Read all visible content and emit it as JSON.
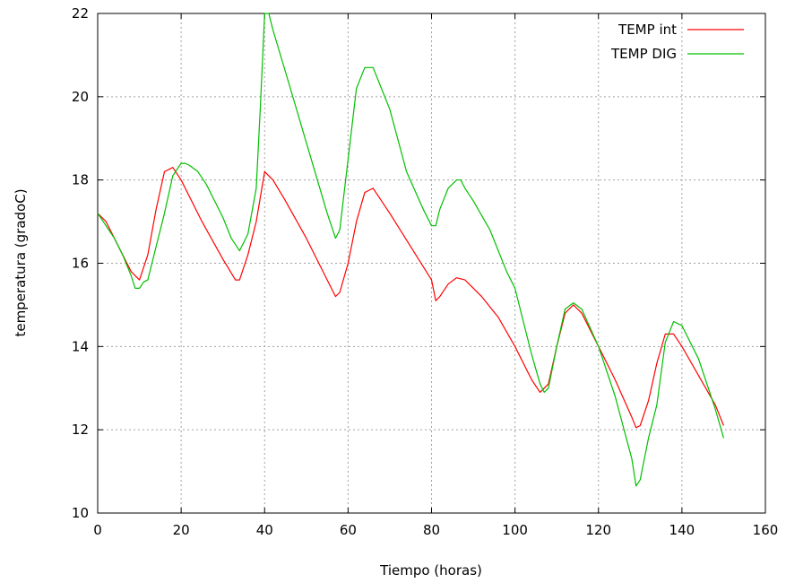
{
  "chart_data": {
    "type": "line",
    "xlabel": "Tiempo (horas)",
    "ylabel": "temperatura (gradoC)",
    "xlim": [
      0,
      160
    ],
    "ylim": [
      10,
      22
    ],
    "xticks": [
      0,
      20,
      40,
      60,
      80,
      100,
      120,
      140,
      160
    ],
    "yticks": [
      10,
      12,
      14,
      16,
      18,
      20,
      22
    ],
    "grid": true,
    "legend_position": "top-right",
    "series": [
      {
        "name": "TEMP int",
        "color": "#ff0000",
        "x": [
          0,
          2,
          4,
          6,
          8,
          10,
          12,
          14,
          16,
          18,
          20,
          25,
          30,
          33,
          34,
          36,
          38,
          40,
          42,
          45,
          50,
          55,
          57,
          58,
          60,
          62,
          64,
          66,
          70,
          75,
          80,
          81,
          82,
          84,
          86,
          88,
          92,
          96,
          100,
          104,
          106,
          108,
          110,
          112,
          114,
          116,
          120,
          124,
          128,
          129,
          130,
          132,
          134,
          136,
          138,
          140,
          144,
          148,
          150
        ],
        "y": [
          17.2,
          17.0,
          16.6,
          16.2,
          15.8,
          15.6,
          16.2,
          17.3,
          18.2,
          18.3,
          18.0,
          17.0,
          16.1,
          15.6,
          15.6,
          16.2,
          17.0,
          18.2,
          18.0,
          17.5,
          16.6,
          15.6,
          15.2,
          15.3,
          16.0,
          17.0,
          17.7,
          17.8,
          17.2,
          16.4,
          15.6,
          15.1,
          15.2,
          15.5,
          15.65,
          15.6,
          15.2,
          14.7,
          14.0,
          13.2,
          12.9,
          13.1,
          14.0,
          14.8,
          15.0,
          14.8,
          14.0,
          13.2,
          12.3,
          12.05,
          12.1,
          12.7,
          13.6,
          14.3,
          14.3,
          14.0,
          13.3,
          12.6,
          12.1
        ]
      },
      {
        "name": "TEMP DIG",
        "color": "#00c000",
        "x": [
          0,
          2,
          4,
          6,
          8,
          9,
          10,
          11,
          12,
          14,
          16,
          18,
          20,
          21,
          22,
          24,
          26,
          28,
          30,
          32,
          34,
          36,
          38,
          39,
          40,
          41,
          42,
          45,
          50,
          55,
          57,
          58,
          60,
          62,
          64,
          66,
          68,
          70,
          74,
          78,
          80,
          81,
          82,
          84,
          86,
          87,
          88,
          90,
          94,
          98,
          100,
          102,
          104,
          106,
          107,
          108,
          110,
          112,
          114,
          116,
          120,
          124,
          128,
          129,
          130,
          132,
          134,
          136,
          138,
          140,
          144,
          148,
          150
        ],
        "y": [
          17.2,
          16.9,
          16.6,
          16.2,
          15.7,
          15.4,
          15.4,
          15.55,
          15.6,
          16.4,
          17.2,
          18.1,
          18.4,
          18.4,
          18.35,
          18.2,
          17.9,
          17.5,
          17.1,
          16.6,
          16.3,
          16.7,
          17.8,
          19.8,
          22.0,
          22.0,
          21.6,
          20.6,
          18.9,
          17.2,
          16.6,
          16.8,
          18.5,
          20.2,
          20.7,
          20.7,
          20.2,
          19.7,
          18.2,
          17.3,
          16.9,
          16.9,
          17.3,
          17.8,
          18.0,
          18.0,
          17.8,
          17.5,
          16.8,
          15.8,
          15.4,
          14.6,
          13.8,
          13.1,
          12.9,
          13.0,
          14.0,
          14.9,
          15.05,
          14.9,
          14.0,
          12.8,
          11.3,
          10.65,
          10.8,
          11.8,
          12.6,
          14.1,
          14.6,
          14.5,
          13.7,
          12.5,
          11.8
        ]
      }
    ]
  }
}
